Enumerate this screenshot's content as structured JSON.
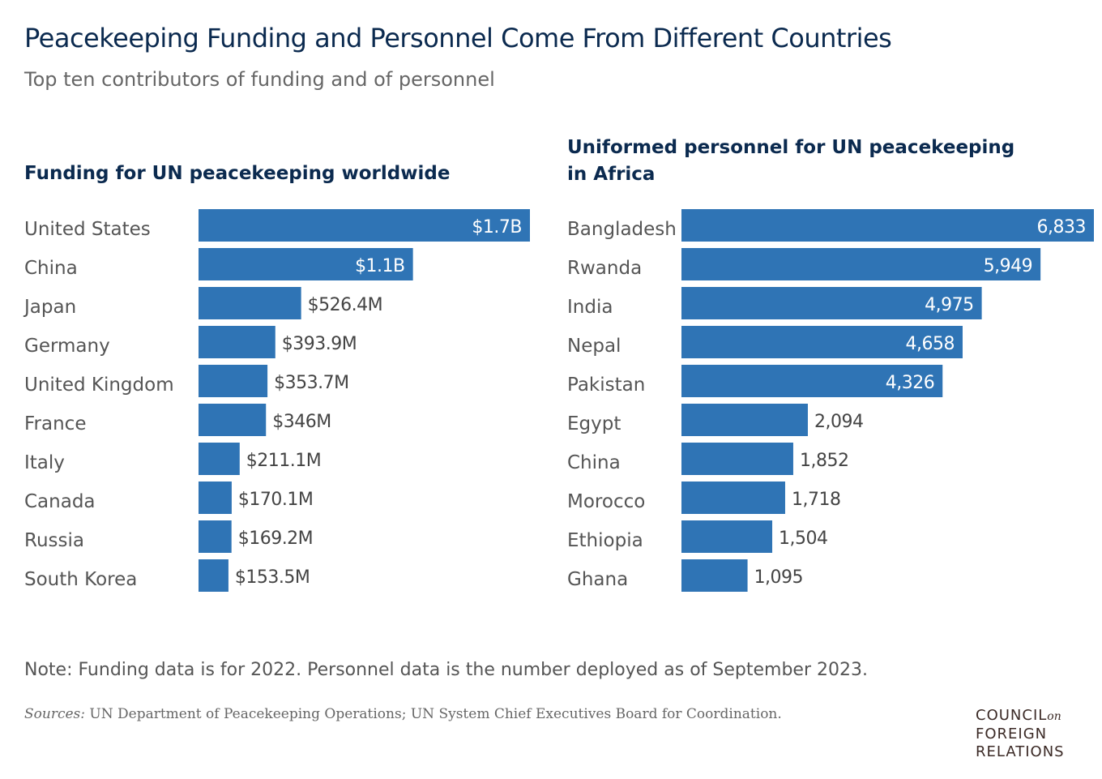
{
  "title": "Peacekeeping Funding and Personnel Come From Different Countries",
  "subtitle": "Top ten contributors of funding and of personnel",
  "chart_data": [
    {
      "type": "bar",
      "orientation": "horizontal",
      "title": "Funding for UN peacekeeping worldwide",
      "unit": "millions USD",
      "categories": [
        "United States",
        "China",
        "Japan",
        "Germany",
        "United Kingdom",
        "France",
        "Italy",
        "Canada",
        "Russia",
        "South Korea"
      ],
      "values": [
        1700,
        1100,
        526.4,
        393.9,
        353.7,
        346,
        211.1,
        170.1,
        169.2,
        153.5
      ],
      "labels": [
        "$1.7B",
        "$1.1B",
        "$526.4M",
        "$393.9M",
        "$353.7M",
        "$346M",
        "$211.1M",
        "$170.1M",
        "$169.2M",
        "$153.5M"
      ],
      "color": "#2f74b5",
      "grid": false
    },
    {
      "type": "bar",
      "orientation": "horizontal",
      "title": "Uniformed personnel for UN peacekeeping in Africa",
      "categories": [
        "Bangladesh",
        "Rwanda",
        "India",
        "Nepal",
        "Pakistan",
        "Egypt",
        "China",
        "Morocco",
        "Ethiopia",
        "Ghana"
      ],
      "values": [
        6833,
        5949,
        4975,
        4658,
        4326,
        2094,
        1852,
        1718,
        1504,
        1095
      ],
      "labels": [
        "6,833",
        "5,949",
        "4,975",
        "4,658",
        "4,326",
        "2,094",
        "1,852",
        "1,718",
        "1,504",
        "1,095"
      ],
      "color": "#2f74b5",
      "grid": false
    }
  ],
  "note": "Note: Funding data is for 2022. Personnel data is the number deployed as of September 2023.",
  "source_label": "Sources:",
  "source_text": " UN Department of Peacekeeping Operations; UN System Chief Executives Board for Coordination.",
  "logo": {
    "line1": "COUNCIL",
    "on": "on",
    "line2": "FOREIGN",
    "line3": "RELATIONS"
  }
}
